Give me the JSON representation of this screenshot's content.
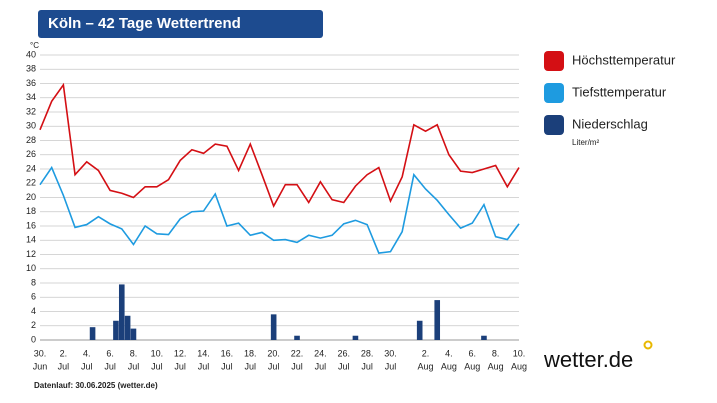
{
  "header": {
    "title": "Köln – 42 Tage Wettertrend"
  },
  "chart_data": {
    "type": "line",
    "y_unit": "°C",
    "categories": [
      {
        "day": "30.",
        "month": "Jun"
      },
      null,
      {
        "day": "2.",
        "month": "Jul"
      },
      null,
      {
        "day": "4.",
        "month": "Jul"
      },
      null,
      {
        "day": "6.",
        "month": "Jul"
      },
      null,
      {
        "day": "8.",
        "month": "Jul"
      },
      null,
      {
        "day": "10.",
        "month": "Jul"
      },
      null,
      {
        "day": "12.",
        "month": "Jul"
      },
      null,
      {
        "day": "14.",
        "month": "Jul"
      },
      null,
      {
        "day": "16.",
        "month": "Jul"
      },
      null,
      {
        "day": "18.",
        "month": "Jul"
      },
      null,
      {
        "day": "20.",
        "month": "Jul"
      },
      null,
      {
        "day": "22.",
        "month": "Jul"
      },
      null,
      {
        "day": "24.",
        "month": "Jul"
      },
      null,
      {
        "day": "26.",
        "month": "Jul"
      },
      null,
      {
        "day": "28.",
        "month": "Jul"
      },
      null,
      {
        "day": "30.",
        "month": "Jul"
      },
      null,
      null,
      {
        "day": "2.",
        "month": "Aug"
      },
      null,
      {
        "day": "4.",
        "month": "Aug"
      },
      null,
      {
        "day": "6.",
        "month": "Aug"
      },
      null,
      {
        "day": "8.",
        "month": "Aug"
      },
      null,
      {
        "day": "10.",
        "month": "Aug"
      }
    ],
    "series": [
      {
        "name": "Höchsttemperatur",
        "color": "#d40f14",
        "values": [
          29.5,
          33.5,
          35.8,
          23.2,
          25,
          23.8,
          21,
          20.6,
          20,
          21.5,
          21.5,
          22.5,
          25.2,
          26.7,
          26.2,
          27.5,
          27.2,
          23.8,
          27.5,
          23.2,
          18.8,
          21.8,
          21.8,
          19.3,
          22.2,
          19.7,
          19.3,
          21.6,
          23.2,
          24.2,
          19.5,
          22.9,
          30.2,
          29.3,
          30.2,
          26,
          23.7,
          23.5,
          24,
          24.5,
          21.5,
          24.2
        ]
      },
      {
        "name": "Tiefsttemperatur",
        "color": "#1e9be0",
        "values": [
          21.8,
          24.2,
          20.3,
          15.8,
          16.2,
          17.3,
          16.3,
          15.6,
          13.4,
          16,
          14.9,
          14.8,
          17,
          18,
          18.1,
          20.5,
          16,
          16.4,
          14.7,
          15.1,
          14,
          14.1,
          13.7,
          14.7,
          14.3,
          14.7,
          16.3,
          16.8,
          16.2,
          12.2,
          12.4,
          15.2,
          23.2,
          21.2,
          19.6,
          17.6,
          15.7,
          16.4,
          19,
          14.5,
          14.1,
          16.3
        ]
      },
      {
        "name": "Niederschlag",
        "unit": "Liter/m²",
        "color": "#1b3f7a",
        "type": "bar",
        "x": [
          4.5,
          6.5,
          7,
          7.5,
          8,
          20,
          22,
          27,
          32.5,
          34,
          38
        ],
        "values": [
          1.8,
          2.7,
          7.8,
          3.4,
          1.6,
          3.6,
          0.6,
          0.6,
          2.7,
          5.6,
          0.6
        ]
      }
    ],
    "ylim": [
      0,
      40
    ],
    "yticks": [
      0,
      2,
      4,
      6,
      8,
      10,
      12,
      14,
      16,
      18,
      20,
      22,
      24,
      26,
      28,
      30,
      32,
      34,
      36,
      38,
      40
    ],
    "grid": true
  },
  "footer": {
    "source": "Datenlauf: 30.06.2025 (wetter.de)",
    "logo": "wetter.de"
  }
}
